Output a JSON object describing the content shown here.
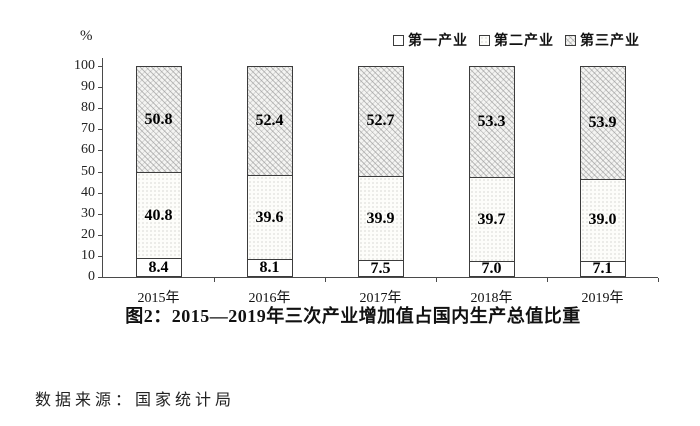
{
  "chart": {
    "caption": "图2：2015—2019年三次产业增加值占国内生产总值比重",
    "source_note": "数据来源：国家统计局"
  },
  "chart_data": {
    "type": "bar",
    "stacked": true,
    "title": "图2：2015—2019年三次产业增加值占国内生产总值比重",
    "categories": [
      "2015年",
      "2016年",
      "2017年",
      "2018年",
      "2019年"
    ],
    "series": [
      {
        "name": "第一产业",
        "pattern": "plain",
        "values": [
          8.4,
          8.1,
          7.5,
          7.0,
          7.1
        ]
      },
      {
        "name": "第二产业",
        "pattern": "dots",
        "values": [
          40.8,
          39.6,
          39.9,
          39.7,
          39.0
        ]
      },
      {
        "name": "第三产业",
        "pattern": "hatch",
        "values": [
          50.8,
          52.4,
          52.7,
          53.3,
          53.9
        ]
      }
    ],
    "xlabel": "",
    "ylabel": "%",
    "ylim": [
      0,
      100
    ],
    "yticks": [
      0,
      10,
      20,
      30,
      40,
      50,
      60,
      70,
      80,
      90,
      100
    ],
    "legend_position": "top-right",
    "grid": false,
    "value_decimals": 1,
    "colors": {
      "bar_border": "#3c3c3c",
      "axis": "#4a4a4a",
      "text": "#1a1a1a",
      "background": "#ffffff"
    }
  }
}
